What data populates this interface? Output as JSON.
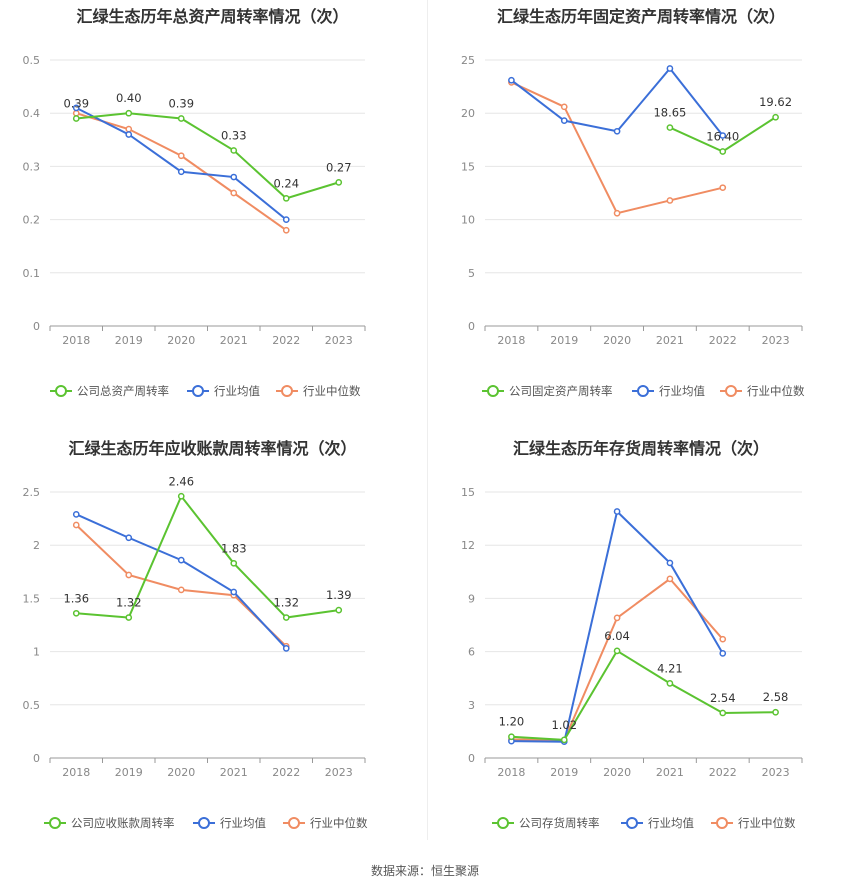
{
  "colors": {
    "company": "#5bc331",
    "avg": "#3b6fd8",
    "median": "#f08c62",
    "grid": "#e6e6e6",
    "axis": "#999999"
  },
  "source": "数据来源：恒生聚源",
  "legend": {
    "avg": "行业均值",
    "median": "行业中位数"
  },
  "chart_data": [
    {
      "type": "line",
      "title": "汇绿生态历年总资产周转率情况（次）",
      "categories": [
        "2018",
        "2019",
        "2020",
        "2021",
        "2022",
        "2023"
      ],
      "ylim": [
        0,
        0.5
      ],
      "yticks": [
        "0",
        "0.1",
        "0.2",
        "0.3",
        "0.4",
        "0.5"
      ],
      "series": [
        {
          "name": "公司总资产周转率",
          "key": "company",
          "values": [
            0.39,
            0.4,
            0.39,
            0.33,
            0.24,
            0.27
          ],
          "labels": [
            "0.39",
            "0.40",
            "0.39",
            "0.33",
            "0.24",
            "0.27"
          ]
        },
        {
          "name": "行业均值",
          "key": "avg",
          "values": [
            0.41,
            0.36,
            0.29,
            0.28,
            0.2,
            null
          ]
        },
        {
          "name": "行业中位数",
          "key": "median",
          "values": [
            0.4,
            0.37,
            0.32,
            0.25,
            0.18,
            null
          ]
        }
      ]
    },
    {
      "type": "line",
      "title": "汇绿生态历年固定资产周转率情况（次）",
      "categories": [
        "2018",
        "2019",
        "2020",
        "2021",
        "2022",
        "2023"
      ],
      "ylim": [
        0,
        25
      ],
      "yticks": [
        "0",
        "5",
        "10",
        "15",
        "20",
        "25"
      ],
      "series": [
        {
          "name": "公司固定资产周转率",
          "key": "company",
          "values": [
            null,
            null,
            null,
            18.65,
            16.4,
            19.62
          ],
          "labels": [
            null,
            null,
            null,
            "18.65",
            "16.40",
            "19.62"
          ]
        },
        {
          "name": "行业均值",
          "key": "avg",
          "values": [
            23.1,
            19.3,
            18.3,
            24.2,
            17.9,
            null
          ]
        },
        {
          "name": "行业中位数",
          "key": "median",
          "values": [
            22.9,
            20.6,
            10.6,
            11.8,
            13.0,
            null
          ]
        }
      ]
    },
    {
      "type": "line",
      "title": "汇绿生态历年应收账款周转率情况（次）",
      "categories": [
        "2018",
        "2019",
        "2020",
        "2021",
        "2022",
        "2023"
      ],
      "ylim": [
        0,
        2.5
      ],
      "yticks": [
        "0",
        "0.5",
        "1",
        "1.5",
        "2",
        "2.5"
      ],
      "series": [
        {
          "name": "公司应收账款周转率",
          "key": "company",
          "values": [
            1.36,
            1.32,
            2.46,
            1.83,
            1.32,
            1.39
          ],
          "labels": [
            "1.36",
            "1.32",
            "2.46",
            "1.83",
            "1.32",
            "1.39"
          ]
        },
        {
          "name": "行业均值",
          "key": "avg",
          "values": [
            2.29,
            2.07,
            1.86,
            1.56,
            1.03,
            null
          ]
        },
        {
          "name": "行业中位数",
          "key": "median",
          "values": [
            2.19,
            1.72,
            1.58,
            1.53,
            1.05,
            null
          ]
        }
      ]
    },
    {
      "type": "line",
      "title": "汇绿生态历年存货周转率情况（次）",
      "categories": [
        "2018",
        "2019",
        "2020",
        "2021",
        "2022",
        "2023"
      ],
      "ylim": [
        0,
        15
      ],
      "yticks": [
        "0",
        "3",
        "6",
        "9",
        "12",
        "15"
      ],
      "series": [
        {
          "name": "公司存货周转率",
          "key": "company",
          "values": [
            1.2,
            1.02,
            6.04,
            4.21,
            2.54,
            2.58
          ],
          "labels": [
            "1.20",
            "1.02",
            "6.04",
            "4.21",
            "2.54",
            "2.58"
          ]
        },
        {
          "name": "行业均值",
          "key": "avg",
          "values": [
            0.95,
            0.92,
            13.9,
            11.0,
            5.9,
            null
          ]
        },
        {
          "name": "行业中位数",
          "key": "median",
          "values": [
            1.05,
            1.0,
            7.9,
            10.1,
            6.7,
            null
          ]
        }
      ]
    }
  ]
}
